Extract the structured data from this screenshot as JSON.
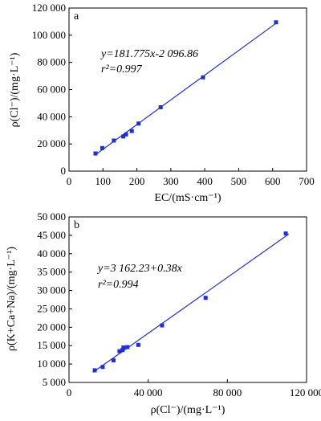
{
  "chart_data": [
    {
      "type": "scatter",
      "panel_label": "a",
      "xlabel": "EC/(mS·cm⁻¹)",
      "ylabel": "ρ(Cl⁻)/(mg·L⁻¹)",
      "xlim": [
        0,
        700
      ],
      "ylim": [
        0,
        120000
      ],
      "xticks": [
        0,
        100,
        200,
        300,
        400,
        500,
        600,
        700
      ],
      "xtick_labels": [
        "0",
        "100",
        "200",
        "300",
        "400",
        "500",
        "600",
        "700"
      ],
      "yticks": [
        0,
        20000,
        40000,
        60000,
        80000,
        100000,
        120000
      ],
      "ytick_labels": [
        "0",
        "20 000",
        "40 000",
        "60 000",
        "80 000",
        "100 000",
        "120 000"
      ],
      "equation": "y=181.775x-2 096.86",
      "r2": "r²=0.997",
      "fit": {
        "slope": 181.775,
        "intercept": -2096.86,
        "x_range": [
          75,
          615
        ]
      },
      "points": [
        {
          "x": 78,
          "y": 13000
        },
        {
          "x": 98,
          "y": 17000
        },
        {
          "x": 132,
          "y": 22500
        },
        {
          "x": 160,
          "y": 25500
        },
        {
          "x": 168,
          "y": 27000
        },
        {
          "x": 185,
          "y": 29500
        },
        {
          "x": 205,
          "y": 35000
        },
        {
          "x": 270,
          "y": 47000
        },
        {
          "x": 395,
          "y": 69000
        },
        {
          "x": 610,
          "y": 109500
        }
      ]
    },
    {
      "type": "scatter",
      "panel_label": "b",
      "xlabel": "ρ(Cl⁻)/(mg·L⁻¹)",
      "ylabel": "ρ(K+Ca+Na)/(mg·L⁻¹)",
      "xlim": [
        0,
        120000
      ],
      "ylim": [
        5000,
        50000
      ],
      "xticks": [
        0,
        40000,
        80000,
        120000
      ],
      "xtick_labels": [
        "0",
        "40 000",
        "80 000",
        "120 000"
      ],
      "yticks": [
        5000,
        10000,
        15000,
        20000,
        25000,
        30000,
        35000,
        40000,
        45000,
        50000
      ],
      "ytick_labels": [
        "5 000",
        "10 000",
        "15 000",
        "20 000",
        "25 000",
        "30 000",
        "35 000",
        "40 000",
        "45 000",
        "50 000"
      ],
      "equation": "y=3 162.23+0.38x",
      "r2": "r²=0.994",
      "fit": {
        "slope": 0.38,
        "intercept": 3162.23,
        "x_range": [
          12000,
          111000
        ]
      },
      "points": [
        {
          "x": 13000,
          "y": 8300
        },
        {
          "x": 17000,
          "y": 9200
        },
        {
          "x": 22500,
          "y": 11000
        },
        {
          "x": 25500,
          "y": 13500
        },
        {
          "x": 27000,
          "y": 13800
        },
        {
          "x": 27500,
          "y": 14500
        },
        {
          "x": 29500,
          "y": 14600
        },
        {
          "x": 35000,
          "y": 15200
        },
        {
          "x": 47000,
          "y": 20500
        },
        {
          "x": 69000,
          "y": 28000
        },
        {
          "x": 109500,
          "y": 45500
        }
      ]
    }
  ]
}
